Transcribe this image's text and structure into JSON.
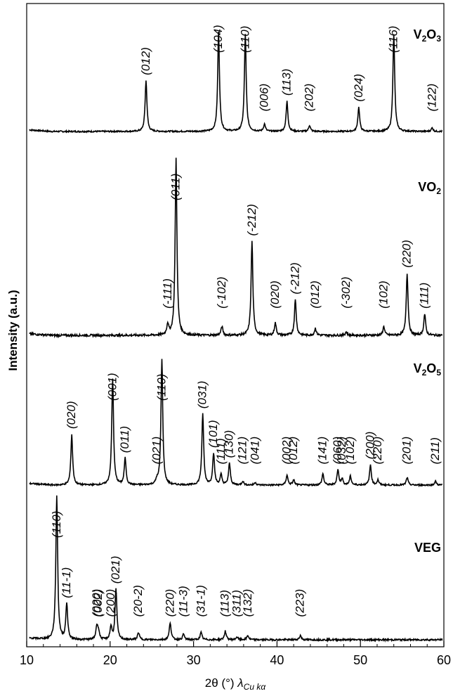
{
  "chart_data": {
    "type": "line",
    "xlabel_main": "2θ (°) ",
    "xlabel_sym": "λ",
    "xlabel_sub": "Cu kα",
    "ylabel": "Intensity (a.u.)",
    "xlim": [
      10,
      60
    ],
    "xticks": [
      10,
      20,
      30,
      40,
      50,
      60
    ],
    "grid": false,
    "panels": [
      {
        "name": "V2O3",
        "label_main": "V",
        "label_sub1": "2",
        "label_mid": "O",
        "label_sub2": "3",
        "peaks": [
          {
            "x": 24.3,
            "h": 0.42,
            "hkl": "(012)"
          },
          {
            "x": 33.0,
            "h": 0.82,
            "hkl": "(104)"
          },
          {
            "x": 36.2,
            "h": 0.8,
            "hkl": "(110)"
          },
          {
            "x": 38.5,
            "h": 0.06,
            "hkl": "(006)"
          },
          {
            "x": 41.2,
            "h": 0.25,
            "hkl": "(113)"
          },
          {
            "x": 43.9,
            "h": 0.05,
            "hkl": "(202)"
          },
          {
            "x": 49.8,
            "h": 0.2,
            "hkl": "(024)"
          },
          {
            "x": 54.0,
            "h": 0.8,
            "hkl": "(116)"
          },
          {
            "x": 58.6,
            "h": 0.03,
            "hkl": "(122)"
          }
        ]
      },
      {
        "name": "VO2",
        "label_main": "VO",
        "label_sub1": "2",
        "label_mid": "",
        "label_sub2": "",
        "peaks": [
          {
            "x": 26.9,
            "h": 0.06,
            "hkl": "(-111)"
          },
          {
            "x": 27.9,
            "h": 1.0,
            "hkl": "(011)"
          },
          {
            "x": 33.4,
            "h": 0.05,
            "hkl": "(-102)"
          },
          {
            "x": 37.0,
            "h": 0.53,
            "hkl": "(-212)"
          },
          {
            "x": 39.8,
            "h": 0.07,
            "hkl": "(020)"
          },
          {
            "x": 42.2,
            "h": 0.2,
            "hkl": "(-212)"
          },
          {
            "x": 44.6,
            "h": 0.04,
            "hkl": "(012)"
          },
          {
            "x": 48.3,
            "h": 0.02,
            "hkl": "(-302)"
          },
          {
            "x": 52.8,
            "h": 0.05,
            "hkl": "(102)"
          },
          {
            "x": 55.6,
            "h": 0.35,
            "hkl": "(220)"
          },
          {
            "x": 57.7,
            "h": 0.12,
            "hkl": "(111)"
          }
        ]
      },
      {
        "name": "V2O5",
        "label_main": "V",
        "label_sub1": "2",
        "label_mid": "O",
        "label_sub2": "5",
        "peaks": [
          {
            "x": 15.4,
            "h": 0.4,
            "hkl": "(020)"
          },
          {
            "x": 20.3,
            "h": 0.84,
            "hkl": "(001)"
          },
          {
            "x": 21.8,
            "h": 0.21,
            "hkl": "(011)"
          },
          {
            "x": 26.2,
            "h": 1.0,
            "hkl": "(110)"
          },
          {
            "x": 25.6,
            "h": 0.03,
            "hkl": "(021)"
          },
          {
            "x": 31.1,
            "h": 0.56,
            "hkl": "(031)"
          },
          {
            "x": 32.4,
            "h": 0.25,
            "hkl": "(101)"
          },
          {
            "x": 33.3,
            "h": 0.08,
            "hkl": "(111)"
          },
          {
            "x": 34.3,
            "h": 0.17,
            "hkl": "(130)"
          },
          {
            "x": 35.9,
            "h": 0.03,
            "hkl": "(121)"
          },
          {
            "x": 37.4,
            "h": 0.02,
            "hkl": "(041)"
          },
          {
            "x": 41.2,
            "h": 0.08,
            "hkl": "(002)"
          },
          {
            "x": 42.0,
            "h": 0.04,
            "hkl": "(012)"
          },
          {
            "x": 45.5,
            "h": 0.09,
            "hkl": "(141)"
          },
          {
            "x": 47.3,
            "h": 0.12,
            "hkl": "(060)"
          },
          {
            "x": 47.8,
            "h": 0.05,
            "hkl": "(032)"
          },
          {
            "x": 48.8,
            "h": 0.07,
            "hkl": "(102)"
          },
          {
            "x": 51.2,
            "h": 0.16,
            "hkl": "(200)"
          },
          {
            "x": 52.1,
            "h": 0.04,
            "hkl": "(220)"
          },
          {
            "x": 55.6,
            "h": 0.06,
            "hkl": "(201)"
          },
          {
            "x": 59.0,
            "h": 0.03,
            "hkl": "(211)"
          }
        ]
      },
      {
        "name": "VEG",
        "label_main": "VEG",
        "label_sub1": "",
        "label_mid": "",
        "label_sub2": "",
        "peaks": [
          {
            "x": 13.6,
            "h": 1.0,
            "hkl": "(110)"
          },
          {
            "x": 14.8,
            "h": 0.25,
            "hkl": "(11-1)"
          },
          {
            "x": 18.4,
            "h": 0.09,
            "hkl": "(020)"
          },
          {
            "x": 18.6,
            "h": 0.06,
            "hkl": "(002)"
          },
          {
            "x": 20.1,
            "h": 0.09,
            "hkl": "(200)"
          },
          {
            "x": 20.7,
            "h": 0.35,
            "hkl": "(021)"
          },
          {
            "x": 23.4,
            "h": 0.05,
            "hkl": "(20-2)"
          },
          {
            "x": 27.2,
            "h": 0.12,
            "hkl": "(220)"
          },
          {
            "x": 28.8,
            "h": 0.04,
            "hkl": "(11-3)"
          },
          {
            "x": 30.9,
            "h": 0.05,
            "hkl": "(31-1)"
          },
          {
            "x": 33.8,
            "h": 0.06,
            "hkl": "(113)"
          },
          {
            "x": 35.2,
            "h": 0.02,
            "hkl": "(311)"
          },
          {
            "x": 36.5,
            "h": 0.03,
            "hkl": "(132)"
          },
          {
            "x": 42.8,
            "h": 0.03,
            "hkl": "(223)"
          }
        ]
      }
    ]
  }
}
